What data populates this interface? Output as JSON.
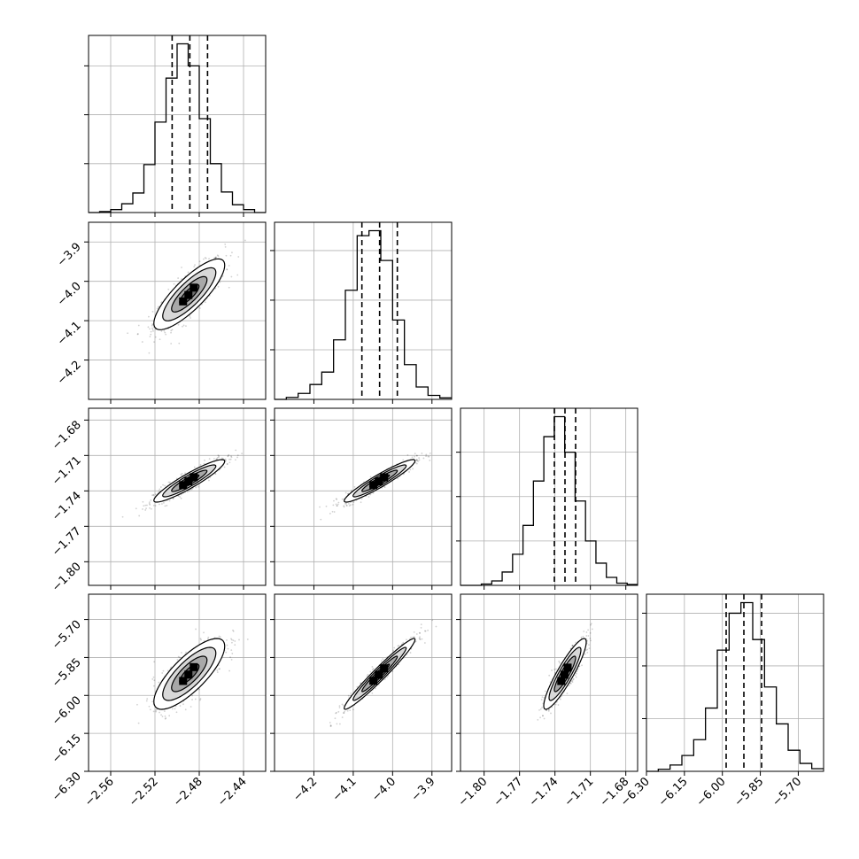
{
  "chart_data": {
    "type": "corner",
    "parameters": [
      {
        "index": 0,
        "range": [
          -2.58,
          -2.42
        ],
        "ticks": [
          -2.56,
          -2.52,
          -2.48,
          -2.44
        ],
        "tick_labels": [
          "−2.56",
          "−2.52",
          "−2.48",
          "−2.44"
        ],
        "quantiles": [
          -2.5045,
          -2.4885,
          -2.4725
        ],
        "histogram": [
          0,
          2,
          6,
          18,
          40,
          98,
          185,
          275,
          345,
          300,
          192,
          100,
          42,
          16,
          6,
          0
        ]
      },
      {
        "index": 1,
        "range": [
          -4.3,
          -3.85
        ],
        "ticks": [
          -4.2,
          -4.1,
          -4.0,
          -3.9
        ],
        "tick_labels": [
          "−4.2",
          "−4.1",
          "−4.0",
          "−3.9"
        ],
        "quantiles": [
          -4.078,
          -4.033,
          -3.988
        ],
        "histogram": [
          0,
          4,
          12,
          30,
          55,
          120,
          220,
          330,
          340,
          280,
          160,
          70,
          25,
          8,
          3
        ]
      },
      {
        "index": 2,
        "range": [
          -1.82,
          -1.67
        ],
        "ticks": [
          -1.8,
          -1.77,
          -1.74,
          -1.71,
          -1.68
        ],
        "tick_labels": [
          "−1.80",
          "−1.77",
          "−1.74",
          "−1.71",
          "−1.68"
        ],
        "quantiles": [
          -1.7405,
          -1.7315,
          -1.7225
        ],
        "histogram": [
          0,
          0,
          3,
          10,
          30,
          70,
          135,
          235,
          335,
          380,
          300,
          190,
          100,
          50,
          18,
          5,
          2
        ]
      },
      {
        "index": 3,
        "range": [
          -6.3,
          -5.6
        ],
        "ticks": [
          -6.3,
          -6.15,
          -6.0,
          -5.85,
          -5.7
        ],
        "tick_labels": [
          "−6.30",
          "−6.15",
          "−6.00",
          "−5.85",
          "−5.70"
        ],
        "quantiles": [
          -5.985,
          -5.915,
          -5.845
        ],
        "histogram": [
          0,
          4,
          12,
          30,
          60,
          120,
          230,
          300,
          320,
          250,
          160,
          90,
          40,
          15,
          5
        ]
      }
    ],
    "pairs": [
      {
        "x": 0,
        "y": 1,
        "mean": [
          -2.489,
          -4.033
        ],
        "sd": [
          0.016,
          0.045
        ],
        "corr": 0.82
      },
      {
        "x": 0,
        "y": 2,
        "mean": [
          -2.489,
          -1.7315
        ],
        "sd": [
          0.016,
          0.009
        ],
        "corr": 0.92
      },
      {
        "x": 1,
        "y": 2,
        "mean": [
          -4.033,
          -1.7315
        ],
        "sd": [
          0.045,
          0.009
        ],
        "corr": 0.94
      },
      {
        "x": 0,
        "y": 3,
        "mean": [
          -2.489,
          -5.915
        ],
        "sd": [
          0.016,
          0.07
        ],
        "corr": 0.78
      },
      {
        "x": 1,
        "y": 3,
        "mean": [
          -4.033,
          -5.915
        ],
        "sd": [
          0.045,
          0.07
        ],
        "corr": 0.97
      },
      {
        "x": 2,
        "y": 3,
        "mean": [
          -1.7315,
          -5.915
        ],
        "sd": [
          0.009,
          0.07
        ],
        "corr": 0.9
      }
    ],
    "grid": true,
    "colors": {
      "line": "#000000",
      "grid": "#b0b0b0",
      "points": "#000000",
      "axes": "#000000"
    }
  }
}
